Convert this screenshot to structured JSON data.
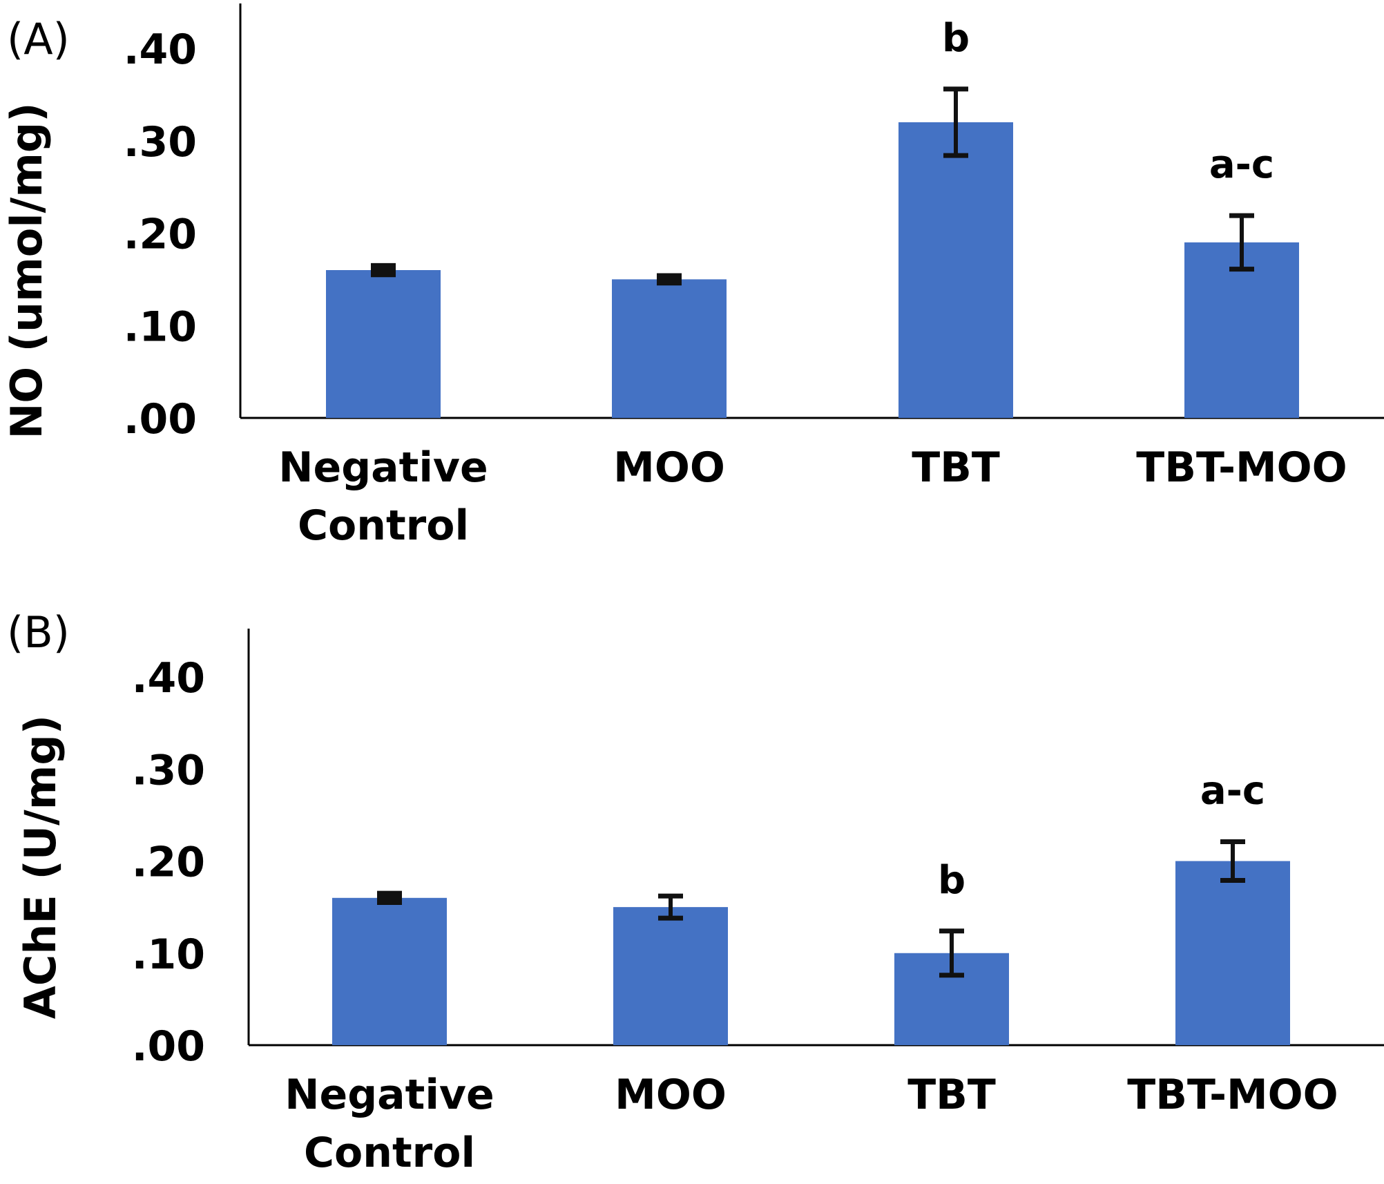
{
  "chart_data": [
    {
      "type": "bar",
      "panel_label": "(A)",
      "ylabel": "NO (umol/mg)",
      "categories": [
        "Negative Control",
        "MOO",
        "TBT",
        "TBT-MOO"
      ],
      "category_lines": [
        [
          "Negative",
          "Control"
        ],
        [
          "MOO"
        ],
        [
          "TBT"
        ],
        [
          "TBT-MOO"
        ]
      ],
      "values": [
        0.16,
        0.15,
        0.32,
        0.19
      ],
      "errors": [
        0.005,
        0.004,
        0.036,
        0.029
      ],
      "annotations": [
        "",
        "",
        "b",
        "a-c"
      ],
      "yticks": [
        ".00",
        ".10",
        ".20",
        ".30",
        ".40"
      ],
      "ylim": [
        0,
        0.45
      ],
      "color": "#4472C4",
      "grid": false
    },
    {
      "type": "bar",
      "panel_label": "(B)",
      "ylabel": "AChE (U/mg)",
      "categories": [
        "Negative Control",
        "MOO",
        "TBT",
        "TBT-MOO"
      ],
      "category_lines": [
        [
          "Negative",
          "Control"
        ],
        [
          "MOO"
        ],
        [
          "TBT"
        ],
        [
          "TBT-MOO"
        ]
      ],
      "values": [
        0.16,
        0.15,
        0.1,
        0.2
      ],
      "errors": [
        0.005,
        0.012,
        0.024,
        0.021
      ],
      "annotations": [
        "",
        "",
        "b",
        "a-c"
      ],
      "yticks": [
        ".00",
        ".10",
        ".20",
        ".30",
        ".40"
      ],
      "ylim": [
        0,
        0.45
      ],
      "color": "#4472C4",
      "grid": false
    }
  ]
}
